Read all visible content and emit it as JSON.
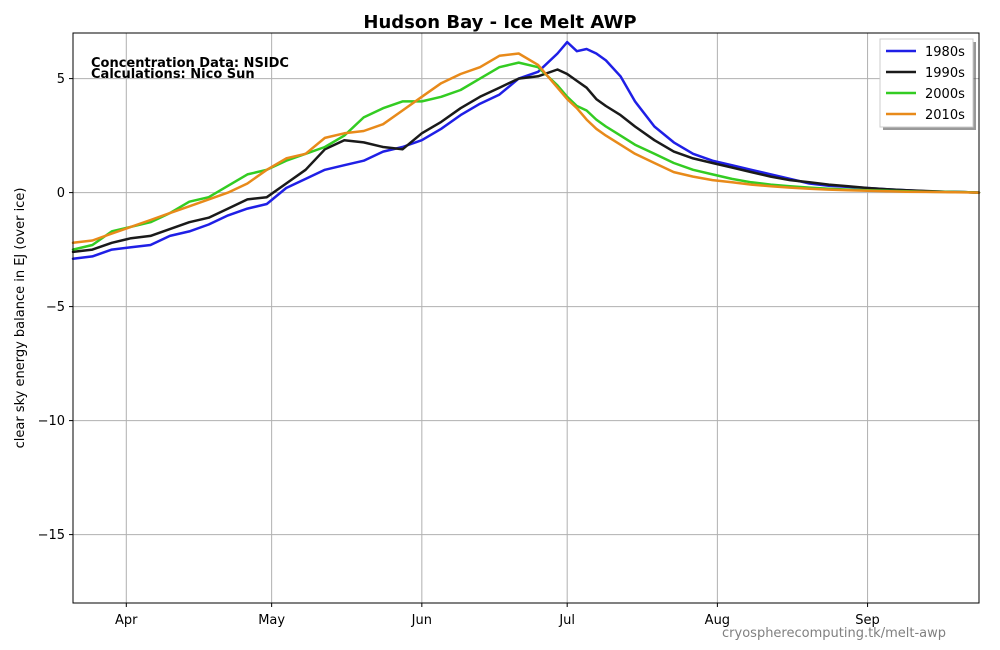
{
  "chart_data": {
    "type": "line",
    "title": "Hudson Bay - Ice Melt AWP",
    "xlabel": "",
    "ylabel": "clear sky energy balance in EJ (over ice)",
    "annotations": [
      "Concentration Data: NSIDC",
      "Calculations: Nico Sun"
    ],
    "credit": "cryospherecomputing.tk/melt-awp",
    "x_ticks": [
      {
        "label": "Apr",
        "day": 91
      },
      {
        "label": "May",
        "day": 121
      },
      {
        "label": "Jun",
        "day": 152
      },
      {
        "label": "Jul",
        "day": 182
      },
      {
        "label": "Aug",
        "day": 213
      },
      {
        "label": "Sep",
        "day": 244
      }
    ],
    "y_ticks": [
      {
        "label": "5",
        "value": 5
      },
      {
        "label": "0",
        "value": 0
      },
      {
        "label": "−5",
        "value": -5
      },
      {
        "label": "−10",
        "value": -10
      },
      {
        "label": "−15",
        "value": -15
      }
    ],
    "xlim": [
      80,
      267
    ],
    "ylim": [
      -18,
      7
    ],
    "grid": true,
    "legend_position": "top-right",
    "series": [
      {
        "name": "1980s",
        "color": "#1f1fe6",
        "x": [
          80,
          84,
          88,
          92,
          96,
          100,
          104,
          108,
          112,
          116,
          120,
          124,
          128,
          132,
          136,
          140,
          144,
          148,
          152,
          156,
          160,
          164,
          168,
          172,
          176,
          180,
          182,
          184,
          186,
          188,
          190,
          193,
          196,
          200,
          204,
          208,
          212,
          216,
          220,
          224,
          228,
          232,
          236,
          240,
          244,
          248,
          252,
          256,
          260,
          264,
          267
        ],
        "y": [
          -2.9,
          -2.8,
          -2.5,
          -2.4,
          -2.3,
          -1.9,
          -1.7,
          -1.4,
          -1.0,
          -0.7,
          -0.5,
          0.2,
          0.6,
          1.0,
          1.2,
          1.4,
          1.8,
          2.0,
          2.3,
          2.8,
          3.4,
          3.9,
          4.3,
          5.0,
          5.3,
          6.1,
          6.6,
          6.2,
          6.3,
          6.1,
          5.8,
          5.1,
          4.0,
          2.9,
          2.2,
          1.7,
          1.4,
          1.2,
          1.0,
          0.8,
          0.6,
          0.4,
          0.3,
          0.25,
          0.2,
          0.15,
          0.1,
          0.06,
          0.04,
          0.02,
          0.0
        ]
      },
      {
        "name": "1990s",
        "color": "#1a1a1a",
        "x": [
          80,
          84,
          88,
          92,
          96,
          100,
          104,
          108,
          112,
          116,
          120,
          124,
          128,
          132,
          136,
          140,
          144,
          148,
          152,
          156,
          160,
          164,
          168,
          172,
          176,
          180,
          182,
          184,
          186,
          188,
          190,
          193,
          196,
          200,
          204,
          208,
          212,
          216,
          220,
          224,
          228,
          232,
          236,
          240,
          244,
          248,
          252,
          256,
          260,
          264,
          267
        ],
        "y": [
          -2.6,
          -2.5,
          -2.2,
          -2.0,
          -1.9,
          -1.6,
          -1.3,
          -1.1,
          -0.7,
          -0.3,
          -0.2,
          0.4,
          1.0,
          1.9,
          2.3,
          2.2,
          2.0,
          1.9,
          2.6,
          3.1,
          3.7,
          4.2,
          4.6,
          5.0,
          5.1,
          5.4,
          5.2,
          4.9,
          4.6,
          4.1,
          3.8,
          3.4,
          2.9,
          2.3,
          1.8,
          1.5,
          1.3,
          1.1,
          0.9,
          0.7,
          0.55,
          0.45,
          0.35,
          0.28,
          0.2,
          0.15,
          0.1,
          0.07,
          0.04,
          0.02,
          0.0
        ]
      },
      {
        "name": "2000s",
        "color": "#33cc22",
        "x": [
          80,
          84,
          88,
          92,
          96,
          100,
          104,
          108,
          112,
          116,
          120,
          124,
          128,
          132,
          136,
          140,
          144,
          148,
          152,
          156,
          160,
          164,
          168,
          172,
          176,
          180,
          182,
          184,
          186,
          188,
          190,
          193,
          196,
          200,
          204,
          208,
          212,
          216,
          220,
          224,
          228,
          232,
          236,
          240,
          244,
          248,
          252,
          256,
          260,
          264,
          267
        ],
        "y": [
          -2.5,
          -2.3,
          -1.7,
          -1.5,
          -1.3,
          -0.9,
          -0.4,
          -0.2,
          0.3,
          0.8,
          1.0,
          1.4,
          1.7,
          2.0,
          2.5,
          3.3,
          3.7,
          4.0,
          4.0,
          4.2,
          4.5,
          5.0,
          5.5,
          5.7,
          5.5,
          4.7,
          4.2,
          3.8,
          3.6,
          3.2,
          2.9,
          2.5,
          2.1,
          1.7,
          1.3,
          1.0,
          0.8,
          0.6,
          0.45,
          0.35,
          0.28,
          0.22,
          0.17,
          0.13,
          0.1,
          0.08,
          0.06,
          0.04,
          0.03,
          0.02,
          0.0
        ]
      },
      {
        "name": "2010s",
        "color": "#e88a1a",
        "x": [
          80,
          84,
          88,
          92,
          96,
          100,
          104,
          108,
          112,
          116,
          120,
          124,
          128,
          132,
          136,
          140,
          144,
          148,
          152,
          156,
          160,
          164,
          168,
          172,
          176,
          180,
          182,
          184,
          186,
          188,
          190,
          193,
          196,
          200,
          204,
          208,
          212,
          216,
          220,
          224,
          228,
          232,
          236,
          240,
          244,
          248,
          252,
          256,
          260,
          264,
          267
        ],
        "y": [
          -2.2,
          -2.1,
          -1.8,
          -1.5,
          -1.2,
          -0.9,
          -0.6,
          -0.3,
          0.0,
          0.4,
          1.0,
          1.5,
          1.7,
          2.4,
          2.6,
          2.7,
          3.0,
          3.6,
          4.2,
          4.8,
          5.2,
          5.5,
          6.0,
          6.1,
          5.6,
          4.6,
          4.1,
          3.7,
          3.2,
          2.8,
          2.5,
          2.1,
          1.7,
          1.3,
          0.9,
          0.7,
          0.55,
          0.45,
          0.35,
          0.28,
          0.22,
          0.17,
          0.13,
          0.1,
          0.08,
          0.06,
          0.04,
          0.03,
          0.02,
          0.01,
          0.0
        ]
      }
    ]
  }
}
